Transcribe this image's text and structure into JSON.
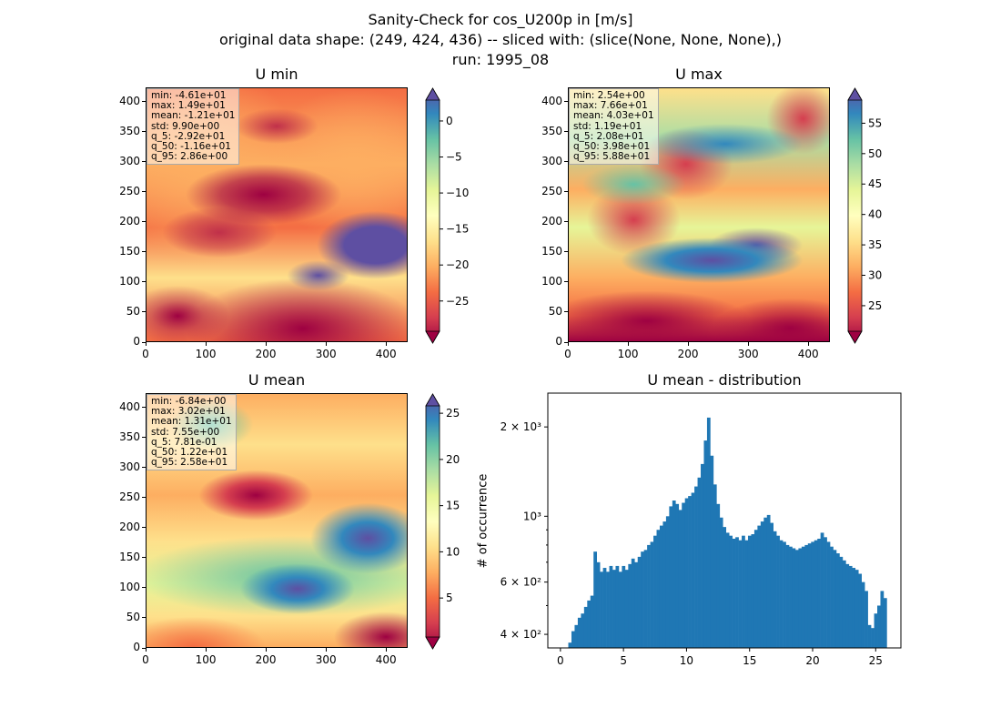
{
  "figure": {
    "title_line1": "Sanity-Check for cos_U200p in [m/s]",
    "title_line2": "original data shape: (249, 424, 436) -- sliced with: (slice(None, None, None),)",
    "title_line3": "run: 1995_08"
  },
  "panels": {
    "umin": {
      "title": "U min",
      "stats": [
        "min: -4.61e+01",
        "max: 1.49e+01",
        "mean: -1.21e+01",
        "std: 9.90e+00",
        "q_5: -2.92e+01",
        "q_50: -1.16e+01",
        "q_95: 2.86e+00"
      ],
      "colorbar_ticks": [
        "0",
        "−5",
        "−10",
        "−15",
        "−20",
        "−25"
      ]
    },
    "umax": {
      "title": "U max",
      "stats": [
        "min: 2.54e+00",
        "max: 7.66e+01",
        "mean: 4.03e+01",
        "std: 1.19e+01",
        "q_5: 2.08e+01",
        "q_50: 3.98e+01",
        "q_95: 5.88e+01"
      ],
      "colorbar_ticks": [
        "55",
        "50",
        "45",
        "40",
        "35",
        "30",
        "25"
      ]
    },
    "umean": {
      "title": "U mean",
      "stats": [
        "min: -6.84e+00",
        "max: 3.02e+01",
        "mean: 1.31e+01",
        "std: 7.55e+00",
        "q_5: 7.81e-01",
        "q_50: 1.22e+01",
        "q_95: 2.58e+01"
      ],
      "colorbar_ticks": [
        "25",
        "20",
        "15",
        "10",
        "5"
      ]
    },
    "hist": {
      "title": "U mean - distribution",
      "ylabel": "# of occurrence"
    }
  },
  "map_axis": {
    "x_ticks": [
      "0",
      "100",
      "200",
      "300",
      "400"
    ],
    "y_ticks": [
      "400",
      "350",
      "300",
      "250",
      "200",
      "150",
      "100",
      "50",
      "0"
    ]
  },
  "chart_data": [
    {
      "type": "heatmap",
      "title": "U min",
      "xlim": [
        0,
        436
      ],
      "ylim": [
        0,
        424
      ],
      "colorbar_range": [
        -29.2,
        2.9
      ],
      "colormap": "Spectral"
    },
    {
      "type": "heatmap",
      "title": "U max",
      "xlim": [
        0,
        436
      ],
      "ylim": [
        0,
        424
      ],
      "colorbar_range": [
        20.8,
        58.8
      ],
      "colormap": "Spectral"
    },
    {
      "type": "heatmap",
      "title": "U mean",
      "xlim": [
        0,
        436
      ],
      "ylim": [
        0,
        424
      ],
      "colorbar_range": [
        0.78,
        25.8
      ],
      "colormap": "Spectral"
    },
    {
      "type": "bar",
      "title": "U mean - distribution",
      "ylabel": "# of occurrence",
      "yscale": "log",
      "xlim": [
        -1,
        27
      ],
      "ylim": [
        360,
        2600
      ],
      "x_ticks": [
        0,
        5,
        10,
        15,
        20,
        25
      ],
      "y_tick_labels": [
        "4 × 10²",
        "6 × 10²",
        "10³",
        "2 × 10³"
      ],
      "y_tick_values": [
        400,
        600,
        1000,
        2000
      ],
      "bar_color": "#1f77b4",
      "bins": [
        [
          0.75,
          375
        ],
        [
          1.0,
          410
        ],
        [
          1.25,
          430
        ],
        [
          1.5,
          455
        ],
        [
          1.75,
          470
        ],
        [
          2.0,
          495
        ],
        [
          2.25,
          520
        ],
        [
          2.5,
          540
        ],
        [
          2.75,
          760
        ],
        [
          3.0,
          700
        ],
        [
          3.25,
          650
        ],
        [
          3.5,
          670
        ],
        [
          3.75,
          650
        ],
        [
          4.0,
          680
        ],
        [
          4.25,
          660
        ],
        [
          4.5,
          680
        ],
        [
          4.75,
          650
        ],
        [
          5.0,
          680
        ],
        [
          5.25,
          660
        ],
        [
          5.5,
          690
        ],
        [
          5.75,
          720
        ],
        [
          6.0,
          700
        ],
        [
          6.25,
          730
        ],
        [
          6.5,
          760
        ],
        [
          6.75,
          770
        ],
        [
          7.0,
          800
        ],
        [
          7.25,
          820
        ],
        [
          7.5,
          860
        ],
        [
          7.75,
          900
        ],
        [
          8.0,
          930
        ],
        [
          8.25,
          960
        ],
        [
          8.5,
          1000
        ],
        [
          8.75,
          1080
        ],
        [
          9.0,
          1130
        ],
        [
          9.25,
          1100
        ],
        [
          9.5,
          1050
        ],
        [
          9.75,
          1110
        ],
        [
          10.0,
          1150
        ],
        [
          10.25,
          1170
        ],
        [
          10.5,
          1200
        ],
        [
          10.75,
          1260
        ],
        [
          11.0,
          1350
        ],
        [
          11.25,
          1500
        ],
        [
          11.5,
          1800
        ],
        [
          11.75,
          2150
        ],
        [
          12.0,
          1600
        ],
        [
          12.25,
          1280
        ],
        [
          12.5,
          1100
        ],
        [
          12.75,
          990
        ],
        [
          13.0,
          920
        ],
        [
          13.25,
          880
        ],
        [
          13.5,
          860
        ],
        [
          13.75,
          840
        ],
        [
          14.0,
          850
        ],
        [
          14.25,
          830
        ],
        [
          14.5,
          860
        ],
        [
          14.75,
          830
        ],
        [
          15.0,
          860
        ],
        [
          15.25,
          870
        ],
        [
          15.5,
          900
        ],
        [
          15.75,
          930
        ],
        [
          16.0,
          960
        ],
        [
          16.25,
          990
        ],
        [
          16.5,
          1010
        ],
        [
          16.75,
          950
        ],
        [
          17.0,
          890
        ],
        [
          17.25,
          860
        ],
        [
          17.5,
          830
        ],
        [
          17.75,
          820
        ],
        [
          18.0,
          800
        ],
        [
          18.25,
          790
        ],
        [
          18.5,
          780
        ],
        [
          18.75,
          770
        ],
        [
          19.0,
          780
        ],
        [
          19.25,
          790
        ],
        [
          19.5,
          800
        ],
        [
          19.75,
          810
        ],
        [
          20.0,
          820
        ],
        [
          20.25,
          830
        ],
        [
          20.5,
          840
        ],
        [
          20.75,
          880
        ],
        [
          21.0,
          850
        ],
        [
          21.25,
          820
        ],
        [
          21.5,
          790
        ],
        [
          21.75,
          770
        ],
        [
          22.0,
          750
        ],
        [
          22.25,
          730
        ],
        [
          22.5,
          710
        ],
        [
          22.75,
          690
        ],
        [
          23.0,
          680
        ],
        [
          23.25,
          670
        ],
        [
          23.5,
          660
        ],
        [
          23.75,
          640
        ],
        [
          24.0,
          600
        ],
        [
          24.25,
          560
        ],
        [
          24.5,
          430
        ],
        [
          24.75,
          420
        ],
        [
          25.0,
          470
        ],
        [
          25.25,
          500
        ],
        [
          25.5,
          560
        ],
        [
          25.75,
          530
        ]
      ]
    }
  ]
}
